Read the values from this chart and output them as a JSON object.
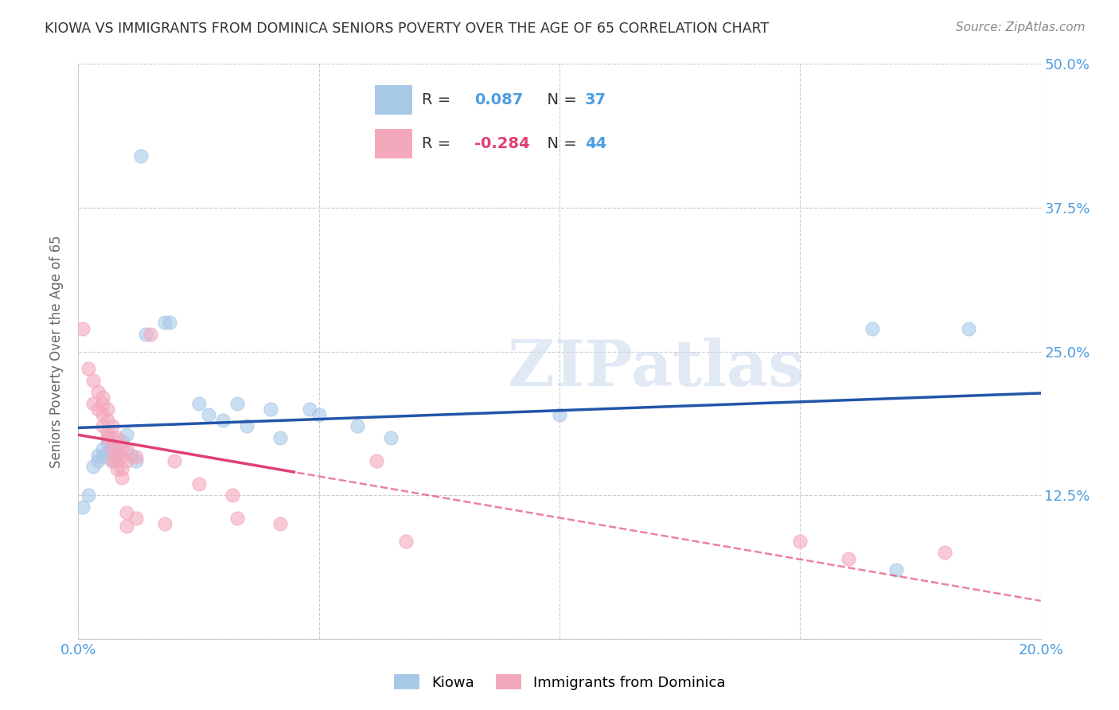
{
  "title": "KIOWA VS IMMIGRANTS FROM DOMINICA SENIORS POVERTY OVER THE AGE OF 65 CORRELATION CHART",
  "source": "Source: ZipAtlas.com",
  "ylabel": "Seniors Poverty Over the Age of 65",
  "xlim": [
    0.0,
    0.2
  ],
  "ylim": [
    0.0,
    0.5
  ],
  "xticks": [
    0.0,
    0.05,
    0.1,
    0.15,
    0.2
  ],
  "xticklabels": [
    "0.0%",
    "",
    "",
    "",
    "20.0%"
  ],
  "yticks": [
    0.0,
    0.125,
    0.25,
    0.375,
    0.5
  ],
  "yticklabels": [
    "",
    "12.5%",
    "25.0%",
    "37.5%",
    "50.0%"
  ],
  "kiowa_color": "#A8C8E8",
  "dominica_color": "#F4A8BC",
  "kiowa_line_color": "#2255AA",
  "dominica_line_color": "#E04070",
  "kiowa_R": 0.087,
  "kiowa_N": 37,
  "dominica_R": -0.284,
  "dominica_N": 44,
  "kiowa_scatter": [
    [
      0.001,
      0.115
    ],
    [
      0.002,
      0.125
    ],
    [
      0.003,
      0.15
    ],
    [
      0.004,
      0.16
    ],
    [
      0.004,
      0.155
    ],
    [
      0.005,
      0.165
    ],
    [
      0.005,
      0.158
    ],
    [
      0.006,
      0.162
    ],
    [
      0.006,
      0.17
    ],
    [
      0.006,
      0.175
    ],
    [
      0.007,
      0.155
    ],
    [
      0.007,
      0.168
    ],
    [
      0.008,
      0.162
    ],
    [
      0.008,
      0.158
    ],
    [
      0.009,
      0.172
    ],
    [
      0.01,
      0.178
    ],
    [
      0.011,
      0.16
    ],
    [
      0.012,
      0.155
    ],
    [
      0.013,
      0.42
    ],
    [
      0.014,
      0.265
    ],
    [
      0.018,
      0.275
    ],
    [
      0.019,
      0.275
    ],
    [
      0.025,
      0.205
    ],
    [
      0.027,
      0.195
    ],
    [
      0.03,
      0.19
    ],
    [
      0.033,
      0.205
    ],
    [
      0.035,
      0.185
    ],
    [
      0.04,
      0.2
    ],
    [
      0.042,
      0.175
    ],
    [
      0.048,
      0.2
    ],
    [
      0.05,
      0.195
    ],
    [
      0.058,
      0.185
    ],
    [
      0.065,
      0.175
    ],
    [
      0.1,
      0.195
    ],
    [
      0.165,
      0.27
    ],
    [
      0.17,
      0.06
    ],
    [
      0.185,
      0.27
    ]
  ],
  "dominica_scatter": [
    [
      0.001,
      0.27
    ],
    [
      0.002,
      0.235
    ],
    [
      0.003,
      0.225
    ],
    [
      0.003,
      0.205
    ],
    [
      0.004,
      0.2
    ],
    [
      0.004,
      0.215
    ],
    [
      0.005,
      0.205
    ],
    [
      0.005,
      0.195
    ],
    [
      0.005,
      0.21
    ],
    [
      0.005,
      0.185
    ],
    [
      0.006,
      0.2
    ],
    [
      0.006,
      0.19
    ],
    [
      0.006,
      0.18
    ],
    [
      0.006,
      0.175
    ],
    [
      0.007,
      0.185
    ],
    [
      0.007,
      0.175
    ],
    [
      0.007,
      0.165
    ],
    [
      0.007,
      0.155
    ],
    [
      0.008,
      0.175
    ],
    [
      0.008,
      0.162
    ],
    [
      0.008,
      0.155
    ],
    [
      0.008,
      0.148
    ],
    [
      0.009,
      0.168
    ],
    [
      0.009,
      0.158
    ],
    [
      0.009,
      0.148
    ],
    [
      0.009,
      0.14
    ],
    [
      0.01,
      0.165
    ],
    [
      0.01,
      0.155
    ],
    [
      0.01,
      0.11
    ],
    [
      0.01,
      0.098
    ],
    [
      0.012,
      0.158
    ],
    [
      0.012,
      0.105
    ],
    [
      0.015,
      0.265
    ],
    [
      0.018,
      0.1
    ],
    [
      0.02,
      0.155
    ],
    [
      0.025,
      0.135
    ],
    [
      0.032,
      0.125
    ],
    [
      0.033,
      0.105
    ],
    [
      0.042,
      0.1
    ],
    [
      0.062,
      0.155
    ],
    [
      0.068,
      0.085
    ],
    [
      0.15,
      0.085
    ],
    [
      0.16,
      0.07
    ],
    [
      0.18,
      0.075
    ]
  ],
  "watermark_text": "ZIPatlas",
  "watermark_color": "#C8D8EC",
  "grid_color": "#CCCCCC",
  "bg_color": "#FFFFFF",
  "title_color": "#333333",
  "tick_color": "#4d9de0",
  "legend_R_color": "#4d9de0",
  "legend_N_color": "#4d9de0"
}
